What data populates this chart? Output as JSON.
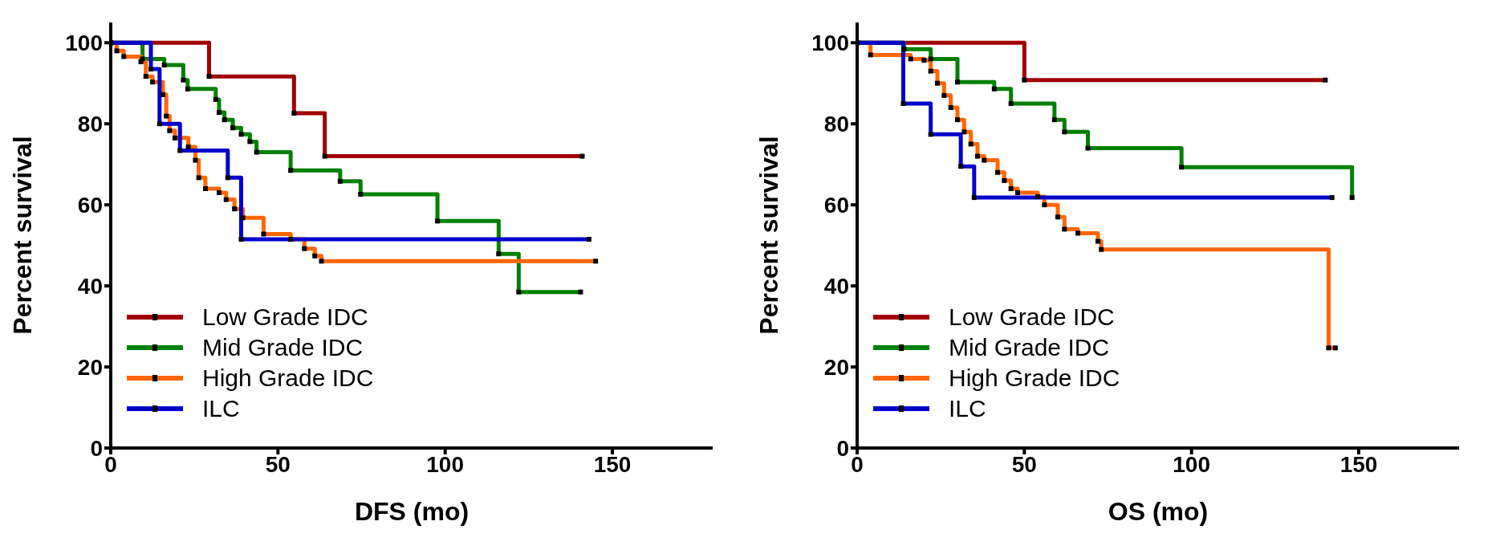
{
  "chart_data": [
    {
      "type": "step",
      "xlabel": "DFS (mo)",
      "ylabel": "Percent survival",
      "xlim": [
        0,
        180
      ],
      "xticks": [
        0,
        50,
        100,
        150
      ],
      "ylim": [
        0,
        105
      ],
      "yticks": [
        0,
        20,
        40,
        60,
        80,
        100
      ],
      "legend": "bottom left",
      "marker": "square",
      "line_style": "solid",
      "series": [
        {
          "name": "Low Grade IDC",
          "color": "#a00000",
          "x": [
            0,
            29.4,
            54.8,
            64,
            141
          ],
          "values": [
            100,
            91.7,
            82.6,
            72,
            72
          ]
        },
        {
          "name": "Mid Grade IDC",
          "color": "#008000",
          "x": [
            0,
            9.5,
            16,
            21.7,
            23,
            31.4,
            32.4,
            34,
            36.5,
            39,
            41.6,
            43.6,
            53.8,
            68.6,
            74.7,
            97.7,
            116,
            122,
            140.5
          ],
          "values": [
            100,
            96,
            94.5,
            90.8,
            88.6,
            86,
            82.8,
            81,
            79,
            77.4,
            75.6,
            73,
            68.5,
            65.8,
            62.6,
            56,
            47.9,
            38.5,
            38.5
          ]
        },
        {
          "name": "High Grade IDC",
          "color": "#ff6600",
          "x": [
            0,
            1.8,
            3.9,
            9,
            10.5,
            12.5,
            15.6,
            16.6,
            17.6,
            19.2,
            23.2,
            25.3,
            26.3,
            28.3,
            32.4,
            34.5,
            37,
            39.5,
            45.7,
            53.8,
            57.9,
            61,
            63,
            145
          ],
          "values": [
            100,
            98,
            96.6,
            95.3,
            91.7,
            90.3,
            87.2,
            81.9,
            78.3,
            76.5,
            74.3,
            71,
            66.7,
            64,
            63,
            61.3,
            59,
            56.8,
            52.8,
            51.5,
            49.2,
            47.4,
            46.1,
            46.1
          ]
        },
        {
          "name": "ILC",
          "color": "#0000cc",
          "x": [
            0,
            12,
            14.6,
            20.7,
            35,
            39,
            143
          ],
          "values": [
            100,
            93.5,
            80,
            73.4,
            66.7,
            51.5,
            51.5
          ]
        }
      ]
    },
    {
      "type": "step",
      "xlabel": "OS (mo)",
      "ylabel": "Percent survival",
      "xlim": [
        0,
        180
      ],
      "xticks": [
        0,
        50,
        100,
        150
      ],
      "ylim": [
        0,
        105
      ],
      "yticks": [
        0,
        20,
        40,
        60,
        80,
        100
      ],
      "legend": "bottom left",
      "marker": "square",
      "line_style": "solid",
      "series": [
        {
          "name": "Low Grade IDC",
          "color": "#a00000",
          "x": [
            0,
            50,
            140
          ],
          "values": [
            100,
            90.8,
            90.8
          ]
        },
        {
          "name": "Mid Grade IDC",
          "color": "#008000",
          "x": [
            0,
            14,
            22,
            30,
            41,
            46,
            59,
            62,
            69,
            97,
            148
          ],
          "values": [
            100,
            98.4,
            96,
            90.3,
            88.6,
            85,
            81,
            78,
            74,
            69.3,
            61.8
          ]
        },
        {
          "name": "High Grade IDC",
          "color": "#ff6600",
          "x": [
            0,
            4,
            16,
            20,
            22,
            24,
            26,
            28,
            30,
            32,
            34,
            36,
            38,
            42,
            44,
            46,
            48,
            54,
            56,
            60,
            62,
            66,
            72,
            73,
            141,
            143
          ],
          "values": [
            100,
            97,
            96,
            95.7,
            93,
            90,
            87,
            84,
            81,
            78,
            75,
            72,
            71,
            68,
            66,
            64,
            63,
            62,
            60,
            57,
            54,
            53,
            51,
            49,
            24.7,
            24.7
          ]
        },
        {
          "name": "ILC",
          "color": "#0000cc",
          "x": [
            0,
            13.8,
            22,
            31,
            35,
            142
          ],
          "values": [
            100,
            85,
            77.4,
            69.5,
            61.8,
            61.8
          ]
        }
      ]
    }
  ]
}
